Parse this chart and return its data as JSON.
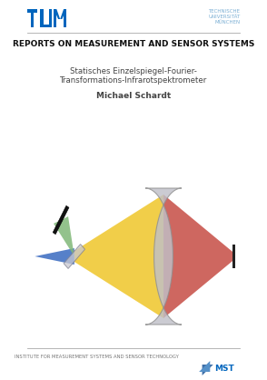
{
  "title_line1": "REPORTS ON MEASUREMENT AND SENSOR SYSTEMS",
  "subtitle_line1": "Statisches Einzelspiegel-Fourier-",
  "subtitle_line2": "Transformations-Infrarotspektrometer",
  "author": "Michael Schardt",
  "tum_right_line1": "TECHNISCHE",
  "tum_right_line2": "UNIVERSITÄT",
  "tum_right_line3": "MÜNCHEN",
  "bottom_text": "INSTITUTE FOR MEASUREMENT SYSTEMS AND SENSOR TECHNOLOGY",
  "mst_text": "MST",
  "bg_color": "#ffffff",
  "tum_blue": "#0065BD",
  "tum_light_blue": "#7BAFD4",
  "separator_color": "#bbbbbb",
  "title_color": "#111111",
  "subtitle_color": "#444444",
  "bottom_text_color": "#777777",
  "yellow_beam": "#F0C830",
  "red_beam": "#C8524A",
  "green_beam": "#80B878",
  "blue_beam": "#4472C4",
  "lens_gray": "#C0C0C8",
  "lens_edge": "#909090",
  "mirror_color": "#111111",
  "bs_color": "#C8C8D0",
  "bs_edge": "#808090",
  "det_color": "#222222"
}
